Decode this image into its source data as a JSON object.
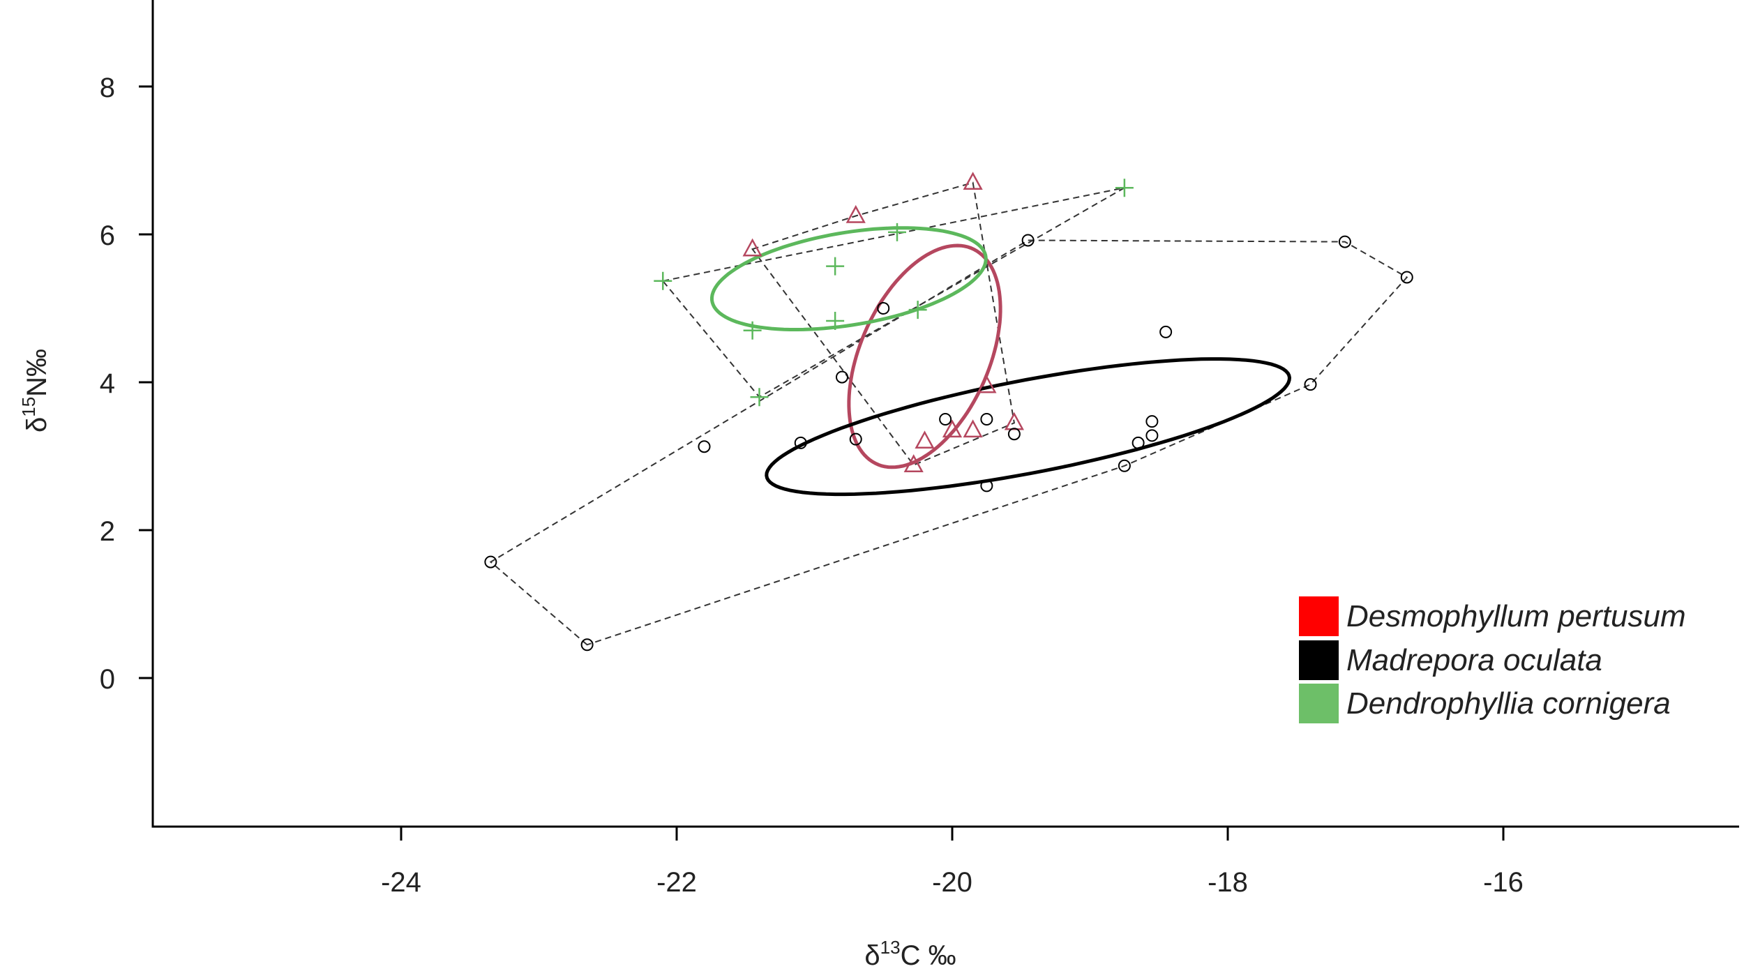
{
  "chart_data": {
    "type": "scatter",
    "xlabel": {
      "symbol": "δ",
      "sup": "13",
      "text": "C ‰"
    },
    "ylabel": {
      "symbol": "δ",
      "sup": "15",
      "text": "N‰"
    },
    "xlim": [
      -25.5,
      -14.5
    ],
    "ylim": [
      -2,
      9
    ],
    "xticks": [
      "-24",
      "-22",
      "-20",
      "-18",
      "-16"
    ],
    "yticks": [
      "0",
      "2",
      "4",
      "6",
      "8"
    ],
    "grid": false,
    "legend_position": "bottom-right",
    "series": [
      {
        "name": "Desmophyllum pertusum",
        "legend_color": "#ff0000",
        "color": "#b5475f",
        "marker": "triangle",
        "points": [
          [
            -21.45,
            5.8
          ],
          [
            -20.7,
            6.25
          ],
          [
            -19.85,
            6.7
          ],
          [
            -20.2,
            3.2
          ],
          [
            -20.0,
            3.35
          ],
          [
            -19.85,
            3.35
          ],
          [
            -19.75,
            3.95
          ],
          [
            -19.55,
            3.45
          ],
          [
            -20.28,
            2.88
          ]
        ],
        "hull": [
          [
            -21.45,
            5.8
          ],
          [
            -20.7,
            6.25
          ],
          [
            -19.85,
            6.7
          ],
          [
            -19.55,
            3.45
          ],
          [
            -20.28,
            2.88
          ]
        ],
        "ellipse": {
          "center": [
            -20.2,
            4.35
          ],
          "semi_major": 1.52,
          "semi_minor": 0.49,
          "angle_deg": 80
        }
      },
      {
        "name": "Madrepora oculata",
        "legend_color": "#000000",
        "color": "#000000",
        "marker": "circle",
        "points": [
          [
            -23.35,
            1.57
          ],
          [
            -22.65,
            0.45
          ],
          [
            -21.8,
            3.13
          ],
          [
            -21.1,
            3.18
          ],
          [
            -20.8,
            4.07
          ],
          [
            -20.7,
            3.23
          ],
          [
            -20.5,
            5.0
          ],
          [
            -20.05,
            3.5
          ],
          [
            -19.75,
            3.5
          ],
          [
            -19.75,
            2.6
          ],
          [
            -19.55,
            3.3
          ],
          [
            -19.45,
            5.92
          ],
          [
            -18.75,
            2.87
          ],
          [
            -18.65,
            3.18
          ],
          [
            -18.55,
            3.28
          ],
          [
            -18.55,
            3.47
          ],
          [
            -18.45,
            4.68
          ],
          [
            -17.4,
            3.97
          ],
          [
            -17.15,
            5.9
          ],
          [
            -16.7,
            5.42
          ]
        ],
        "hull": [
          [
            -22.65,
            0.45
          ],
          [
            -23.35,
            1.57
          ],
          [
            -19.45,
            5.92
          ],
          [
            -17.15,
            5.9
          ],
          [
            -16.7,
            5.42
          ],
          [
            -17.4,
            3.97
          ],
          [
            -18.75,
            2.87
          ]
        ],
        "ellipse": {
          "center": [
            -19.45,
            3.4
          ],
          "semi_major": 2.02,
          "semi_minor": 0.6,
          "angle_deg": 21
        }
      },
      {
        "name": "Dendrophyllia cornigera",
        "legend_color": "#6dbf68",
        "color": "#5cb85c",
        "marker": "plus",
        "points": [
          [
            -22.1,
            5.37
          ],
          [
            -21.45,
            4.7
          ],
          [
            -21.4,
            3.8
          ],
          [
            -20.85,
            5.57
          ],
          [
            -20.85,
            4.83
          ],
          [
            -20.4,
            6.03
          ],
          [
            -20.25,
            4.98
          ],
          [
            -18.75,
            6.63
          ]
        ],
        "hull": [
          [
            -22.1,
            5.37
          ],
          [
            -18.75,
            6.63
          ],
          [
            -21.4,
            3.8
          ]
        ],
        "ellipse": {
          "center": [
            -20.75,
            5.4
          ],
          "semi_major": 1.05,
          "semi_minor": 0.6,
          "angle_deg": 23
        }
      }
    ]
  }
}
